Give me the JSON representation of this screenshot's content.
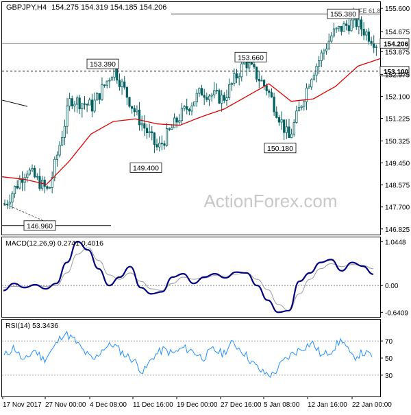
{
  "chart_data": [
    {
      "type": "candlestick",
      "panel": "price",
      "symbol_label": "GBPJPY,H4",
      "ohlc_label": "154.275 154.319 154.185 154.206",
      "watermark": "ActionForex.com",
      "ylim": [
        146.6,
        155.85
      ],
      "y_ticks": [
        "155.600",
        "154.675",
        "153.875",
        "152.975",
        "152.100",
        "151.225",
        "150.325",
        "149.450",
        "148.575",
        "147.700",
        "146.825"
      ],
      "current_price_label": "154.206",
      "current_price": 154.206,
      "horizontal_line_label": "153.100",
      "horizontal_line": 153.1,
      "fib_label": "FE 61.8",
      "annotations": [
        {
          "label": "153.390",
          "value": 153.39,
          "date": "6 Dec 00:00"
        },
        {
          "label": "149.400",
          "value": 149.4,
          "date": "15 Dec 04:00"
        },
        {
          "label": "153.660",
          "value": 153.66,
          "date": "3 Jan 12:00"
        },
        {
          "label": "150.180",
          "value": 150.18,
          "date": "9 Jan 00:00"
        },
        {
          "label": "155.380",
          "value": 155.38,
          "date": "23 Jan 00:00"
        },
        {
          "label": "146.960",
          "value": 146.96,
          "date": "30 Nov 00:00"
        }
      ],
      "series": [
        {
          "kind": "close",
          "x": [
            "17 Nov 2017",
            "22 Nov",
            "27 Nov 00:00",
            "1 Dec",
            "4 Dec 08:00",
            "6 Dec",
            "11 Dec 16:00",
            "15 Dec",
            "19 Dec 00:00",
            "22 Dec",
            "27 Dec 16:00",
            "3 Jan",
            "5 Jan 08:00",
            "9 Jan",
            "12 Jan 16:00",
            "18 Jan",
            "22 Jan 00:00",
            "24 Jan"
          ],
          "values": [
            147.8,
            149.2,
            148.3,
            152.0,
            151.7,
            153.2,
            151.4,
            150.0,
            151.3,
            152.3,
            152.0,
            153.5,
            152.4,
            150.4,
            152.9,
            154.6,
            155.1,
            154.21
          ]
        },
        {
          "kind": "moving-average",
          "color": "#dd0000",
          "x": [
            "17 Nov 2017",
            "22 Nov",
            "27 Nov 00:00",
            "1 Dec",
            "4 Dec 08:00",
            "6 Dec",
            "11 Dec 16:00",
            "15 Dec",
            "19 Dec 00:00",
            "22 Dec",
            "27 Dec 16:00",
            "3 Jan",
            "5 Jan 08:00",
            "9 Jan",
            "12 Jan 16:00",
            "18 Jan",
            "22 Jan 00:00",
            "24 Jan"
          ],
          "values": [
            148.9,
            148.8,
            148.6,
            149.5,
            150.6,
            151.1,
            151.2,
            151.0,
            150.95,
            151.3,
            151.6,
            152.1,
            152.6,
            151.9,
            152.0,
            152.5,
            153.3,
            153.6
          ]
        }
      ]
    },
    {
      "type": "line",
      "panel": "macd",
      "label": "MACD(12,26,9) 0.2741 0.4016",
      "ylim": [
        -0.75,
        1.15
      ],
      "y_ticks": [
        "1.0448",
        "0.00",
        "-0.6409"
      ],
      "zero_line": 0,
      "series": [
        {
          "kind": "macd",
          "color": "#000080",
          "values": [
            -0.12,
            0.05,
            -0.05,
            0.02,
            -0.08,
            0.05,
            0.55,
            1.05,
            0.85,
            0.4,
            0.0,
            0.2,
            0.45,
            -0.05,
            -0.2,
            -0.15,
            0.2,
            0.28,
            0.05,
            0.2,
            0.28,
            0.18,
            0.32,
            0.3,
            0.0,
            -0.35,
            -0.64,
            -0.6,
            0.1,
            0.3,
            0.55,
            0.62,
            0.35,
            0.55,
            0.46,
            0.27
          ]
        },
        {
          "kind": "signal",
          "color": "#999999",
          "values": [
            -0.05,
            -0.02,
            -0.03,
            0.0,
            -0.02,
            0.0,
            0.3,
            0.75,
            0.9,
            0.6,
            0.25,
            0.15,
            0.3,
            0.1,
            -0.08,
            -0.12,
            0.05,
            0.2,
            0.15,
            0.18,
            0.24,
            0.22,
            0.27,
            0.3,
            0.15,
            -0.1,
            -0.45,
            -0.6,
            -0.2,
            0.15,
            0.4,
            0.52,
            0.45,
            0.5,
            0.48,
            0.4
          ]
        }
      ]
    },
    {
      "type": "line",
      "panel": "rsi",
      "label": "RSI(14) 53.3436",
      "ylim": [
        5,
        95
      ],
      "y_ticks": [
        "70",
        "50",
        "30"
      ],
      "levels": [
        70,
        30
      ],
      "series": [
        {
          "kind": "rsi",
          "color": "#1e90ff",
          "values": [
            52,
            63,
            45,
            60,
            48,
            62,
            80,
            72,
            58,
            47,
            62,
            66,
            55,
            48,
            33,
            52,
            60,
            55,
            62,
            58,
            50,
            60,
            55,
            68,
            58,
            44,
            33,
            30,
            45,
            55,
            62,
            68,
            52,
            60,
            72,
            50,
            56,
            53
          ]
        }
      ]
    }
  ],
  "x_axis": {
    "labels": [
      "17 Nov 2017",
      "27 Nov 00:00",
      "4 Dec 08:00",
      "11 Dec 16:00",
      "19 Dec 00:00",
      "27 Dec 16:00",
      "5 Jan 08:00",
      "12 Jan 16:00",
      "22 Jan 00:00"
    ]
  },
  "colors": {
    "accent_ma": "#dd0000",
    "macd": "#000080",
    "rsi": "#1e90ff",
    "candles": "#006060"
  }
}
